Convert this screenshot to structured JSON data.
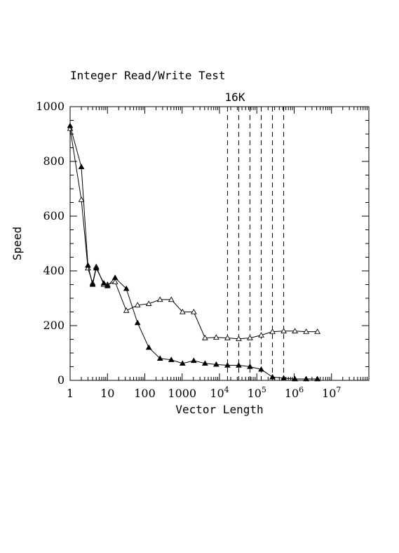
{
  "chart_data": {
    "type": "line",
    "title": "Integer Read/Write Test",
    "xlabel": "Vector Length",
    "ylabel": "Speed",
    "x_scale": "log",
    "xlim": [
      1,
      100000000
    ],
    "ylim": [
      0,
      1000
    ],
    "x_ticks": [
      {
        "value": 1,
        "label": "1",
        "base": "1",
        "exp": ""
      },
      {
        "value": 10,
        "label": "10",
        "base": "10",
        "exp": ""
      },
      {
        "value": 100,
        "label": "100",
        "base": "100",
        "exp": ""
      },
      {
        "value": 1000,
        "label": "1000",
        "base": "1000",
        "exp": ""
      },
      {
        "value": 10000,
        "label": "10^4",
        "base": "10",
        "exp": "4"
      },
      {
        "value": 100000,
        "label": "10^5",
        "base": "10",
        "exp": "5"
      },
      {
        "value": 1000000,
        "label": "10^6",
        "base": "10",
        "exp": "6"
      },
      {
        "value": 10000000,
        "label": "10^7",
        "base": "10",
        "exp": "7"
      }
    ],
    "y_ticks": [
      0,
      200,
      400,
      600,
      800,
      1000
    ],
    "vlines": [
      16384,
      32768,
      65536,
      131072,
      262144,
      524288
    ],
    "vline_label": "16K",
    "grid": false,
    "series": [
      {
        "marker": "open-triangle",
        "x": [
          1,
          2,
          3,
          4,
          5,
          8,
          10,
          16,
          32,
          64,
          128,
          256,
          512,
          1024,
          2048,
          4096,
          8192,
          16384,
          32768,
          65536,
          131072,
          262144,
          524288,
          1048576,
          2097152,
          4194304
        ],
        "y": [
          920,
          660,
          410,
          355,
          415,
          350,
          350,
          360,
          255,
          275,
          280,
          295,
          295,
          250,
          250,
          155,
          157,
          155,
          152,
          155,
          165,
          178,
          180,
          180,
          178,
          178
        ]
      },
      {
        "marker": "filled-triangle",
        "x": [
          1,
          2,
          3,
          4,
          5,
          8,
          10,
          16,
          32,
          64,
          128,
          256,
          512,
          1024,
          2048,
          4096,
          8192,
          16384,
          32768,
          65536,
          131072,
          262144,
          524288,
          1048576,
          2097152,
          4194304
        ],
        "y": [
          930,
          780,
          420,
          350,
          410,
          355,
          345,
          375,
          335,
          210,
          120,
          80,
          75,
          62,
          72,
          62,
          58,
          55,
          55,
          50,
          40,
          12,
          8,
          5,
          5,
          5
        ]
      }
    ]
  }
}
